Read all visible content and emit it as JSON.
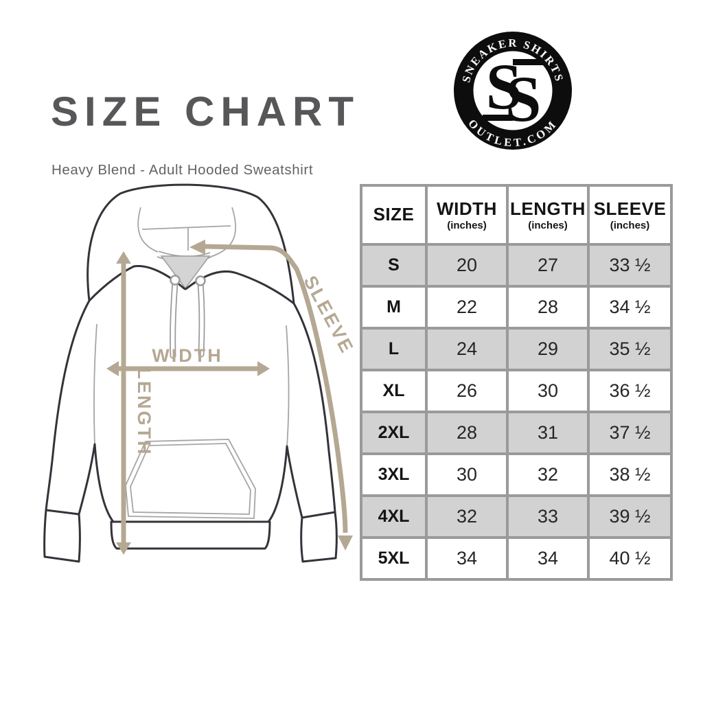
{
  "header": {
    "title": "SIZE CHART",
    "subtitle": "Heavy Blend - Adult Hooded Sweatshirt"
  },
  "logo": {
    "top_text": "SNEAKER SHIRTS",
    "bottom_text": "OUTLET.COM",
    "monogram_letters": [
      "S",
      "S"
    ]
  },
  "diagram": {
    "garment": "hooded sweatshirt line drawing",
    "labels": {
      "width": "WIDTH",
      "length": "LENGTH",
      "sleeve": "SLEEVE"
    }
  },
  "size_table": {
    "columns": [
      {
        "label": "SIZE",
        "sub": ""
      },
      {
        "label": "WIDTH",
        "sub": "(inches)"
      },
      {
        "label": "LENGTH",
        "sub": "(inches)"
      },
      {
        "label": "SLEEVE",
        "sub": "(inches)"
      }
    ],
    "rows": [
      {
        "size": "S",
        "width": "20",
        "length": "27",
        "sleeve": "33 ½"
      },
      {
        "size": "M",
        "width": "22",
        "length": "28",
        "sleeve": "34 ½"
      },
      {
        "size": "L",
        "width": "24",
        "length": "29",
        "sleeve": "35 ½"
      },
      {
        "size": "XL",
        "width": "26",
        "length": "30",
        "sleeve": "36 ½"
      },
      {
        "size": "2XL",
        "width": "28",
        "length": "31",
        "sleeve": "37 ½"
      },
      {
        "size": "3XL",
        "width": "30",
        "length": "32",
        "sleeve": "38 ½"
      },
      {
        "size": "4XL",
        "width": "32",
        "length": "33",
        "sleeve": "39 ½"
      },
      {
        "size": "5XL",
        "width": "34",
        "length": "34",
        "sleeve": "40 ½"
      }
    ]
  },
  "colors": {
    "accent_tan": "#b5a893",
    "table_border": "#9a9a9a",
    "row_shade": "#d2d2d2",
    "title_gray": "#57575a",
    "badge_black": "#0d0d0d",
    "outline_dark": "#34333a",
    "inner_line_gray": "#a5a5a5"
  }
}
